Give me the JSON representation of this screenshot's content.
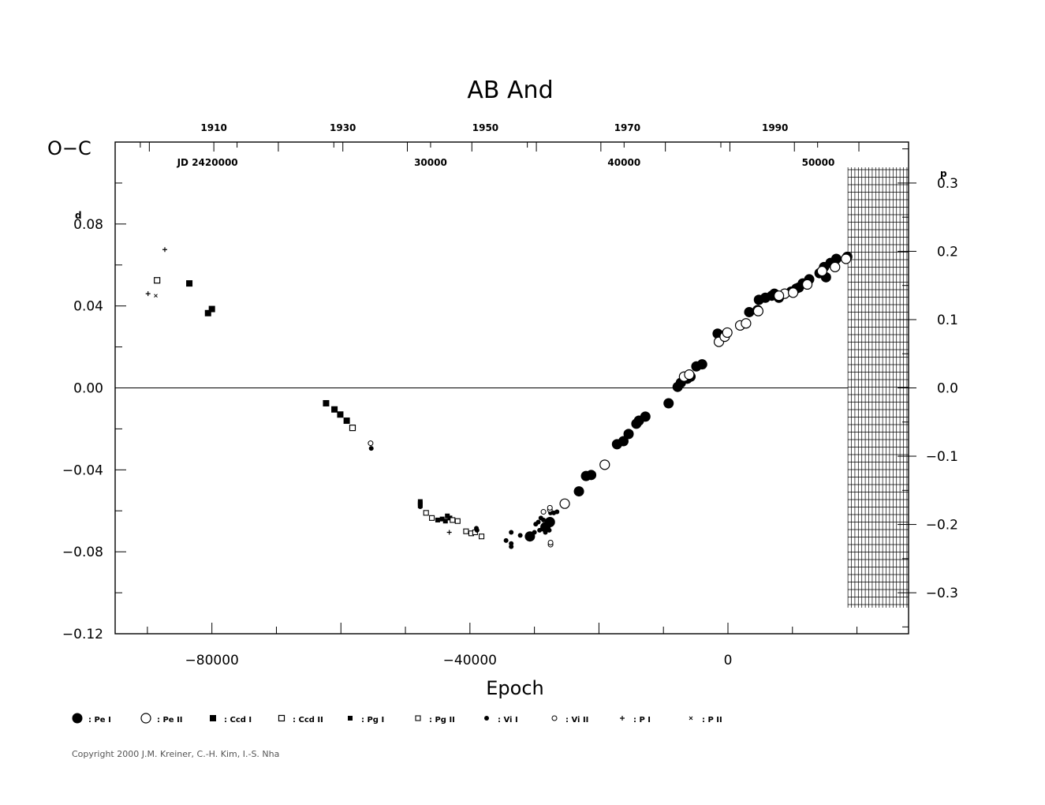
{
  "chart_data": {
    "type": "scatter",
    "title": "AB  And",
    "xlabel": "Epoch",
    "ylabel": "O−C",
    "ylabel_unit": "d",
    "y2_unit": "p",
    "xlim": [
      -95000,
      28000
    ],
    "ylim": [
      -0.12,
      0.12
    ],
    "y2lim": [
      -0.36,
      0.36
    ],
    "x_ticks": [
      -80000,
      -40000,
      0
    ],
    "x_tick_labels": [
      "−80000",
      "−40000",
      "0"
    ],
    "y_ticks": [
      0.08,
      0.04,
      0.0,
      -0.04,
      -0.08,
      -0.12
    ],
    "y_tick_labels": [
      "0.08",
      "0.04",
      "0.00",
      "−0.04",
      "−0.08",
      "−0.12"
    ],
    "y2_ticks": [
      0.3,
      0.2,
      0.1,
      0.0,
      -0.1,
      -0.2,
      -0.3
    ],
    "y2_tick_labels": [
      "0.3",
      "0.2",
      "0.1",
      "0.0",
      "−0.1",
      "−0.2",
      "−0.3"
    ],
    "year_ticks": [
      {
        "label": "1910",
        "x": -79700
      },
      {
        "label": "1930",
        "x": -59700
      },
      {
        "label": "1950",
        "x": -37600
      },
      {
        "label": "1970",
        "x": -15600
      },
      {
        "label": "1990",
        "x": 7300
      }
    ],
    "jd_labels": [
      {
        "label": "JD  2420000",
        "x": -79700
      },
      {
        "label": "30000",
        "x": -46100
      },
      {
        "label": "40000",
        "x": -16100
      },
      {
        "label": "50000",
        "x": 14000
      }
    ],
    "zero_line": true,
    "hatched_region": {
      "x_from": 18600,
      "x_to": 28000
    },
    "series": [
      {
        "name": "Pe I",
        "symbol": "filled-circle-large",
        "points": [
          [
            -30700,
            -0.0725
          ],
          [
            -28300,
            -0.068
          ],
          [
            -27600,
            -0.0655
          ],
          [
            -23100,
            -0.0505
          ],
          [
            -22000,
            -0.043
          ],
          [
            -21200,
            -0.0425
          ],
          [
            -17200,
            -0.0275
          ],
          [
            -16200,
            -0.026
          ],
          [
            -15400,
            -0.0225
          ],
          [
            -14200,
            -0.0175
          ],
          [
            -13800,
            -0.016
          ],
          [
            -12800,
            -0.014
          ],
          [
            -9200,
            -0.0075
          ],
          [
            -7800,
            0.0005
          ],
          [
            -7300,
            0.0025
          ],
          [
            -6300,
            0.0045
          ],
          [
            -5800,
            0.0055
          ],
          [
            -4900,
            0.0105
          ],
          [
            -4000,
            0.0115
          ],
          [
            -1600,
            0.0265
          ],
          [
            -700,
            0.0255
          ],
          [
            -1200,
            0.0245
          ],
          [
            3300,
            0.037
          ],
          [
            4600,
            0.038
          ],
          [
            4800,
            0.043
          ],
          [
            5800,
            0.044
          ],
          [
            6800,
            0.045
          ],
          [
            7200,
            0.046
          ],
          [
            11000,
            0.049
          ],
          [
            11600,
            0.051
          ],
          [
            12600,
            0.053
          ],
          [
            14200,
            0.056
          ],
          [
            14900,
            0.059
          ],
          [
            15900,
            0.061
          ],
          [
            16800,
            0.063
          ],
          [
            18500,
            0.064
          ],
          [
            15200,
            0.054
          ],
          [
            9800,
            0.047
          ],
          [
            10600,
            0.0485
          ],
          [
            7900,
            0.044
          ]
        ]
      },
      {
        "name": "Pe II",
        "symbol": "open-circle-large",
        "points": [
          [
            -25300,
            -0.0565
          ],
          [
            -19100,
            -0.0375
          ],
          [
            -6800,
            0.0055
          ],
          [
            -1400,
            0.0225
          ],
          [
            -500,
            0.025
          ],
          [
            -100,
            0.027
          ],
          [
            1900,
            0.0305
          ],
          [
            2800,
            0.0315
          ],
          [
            4700,
            0.0375
          ],
          [
            8800,
            0.046
          ],
          [
            7900,
            0.045
          ],
          [
            10100,
            0.0465
          ],
          [
            12300,
            0.0505
          ],
          [
            14600,
            0.057
          ],
          [
            16600,
            0.059
          ],
          [
            18300,
            0.063
          ],
          [
            -6000,
            0.0065
          ]
        ]
      },
      {
        "name": "Ccd I",
        "symbol": "filled-square",
        "points": [
          [
            -83500,
            0.051
          ],
          [
            -80600,
            0.0365
          ],
          [
            -80000,
            0.0385
          ],
          [
            -62300,
            -0.0075
          ],
          [
            -61000,
            -0.0105
          ],
          [
            -60100,
            -0.013
          ],
          [
            -59100,
            -0.016
          ]
        ]
      },
      {
        "name": "Ccd II",
        "symbol": "open-square",
        "points": [
          [
            -88500,
            0.0525
          ],
          [
            -58200,
            -0.0195
          ]
        ]
      },
      {
        "name": "Pg I",
        "symbol": "filled-square-small",
        "points": [
          [
            -47700,
            -0.0565
          ],
          [
            -47700,
            -0.0555
          ],
          [
            -47700,
            -0.0575
          ],
          [
            -45000,
            -0.0645
          ],
          [
            -44300,
            -0.064
          ],
          [
            -43800,
            -0.065
          ],
          [
            -43500,
            -0.0625
          ],
          [
            -43100,
            -0.0635
          ]
        ]
      },
      {
        "name": "Pg II",
        "symbol": "open-square-small",
        "points": [
          [
            -46800,
            -0.061
          ],
          [
            -45900,
            -0.0635
          ],
          [
            -42700,
            -0.0645
          ],
          [
            -41900,
            -0.065
          ],
          [
            -40600,
            -0.07
          ],
          [
            -39800,
            -0.071
          ],
          [
            -38200,
            -0.0725
          ],
          [
            -39200,
            -0.0705
          ]
        ]
      },
      {
        "name": "Vi I",
        "symbol": "filled-circle-small",
        "points": [
          [
            -55300,
            -0.0295
          ],
          [
            -47700,
            -0.058
          ],
          [
            -38900,
            -0.0695
          ],
          [
            -34400,
            -0.0745
          ],
          [
            -33600,
            -0.076
          ],
          [
            -33600,
            -0.0775
          ],
          [
            -33600,
            -0.0705
          ],
          [
            -32200,
            -0.072
          ],
          [
            -30800,
            -0.0735
          ],
          [
            -30000,
            -0.0705
          ],
          [
            -29800,
            -0.0665
          ],
          [
            -29400,
            -0.0655
          ],
          [
            -29000,
            -0.0635
          ],
          [
            -28600,
            -0.0645
          ],
          [
            -28200,
            -0.0685
          ],
          [
            -27800,
            -0.0675
          ],
          [
            -27500,
            -0.061
          ],
          [
            -27000,
            -0.061
          ],
          [
            -26500,
            -0.0605
          ],
          [
            -29200,
            -0.0695
          ],
          [
            -28000,
            -0.0655
          ],
          [
            -27700,
            -0.0695
          ],
          [
            -39000,
            -0.0685
          ],
          [
            -28300,
            -0.0705
          ]
        ]
      },
      {
        "name": "Vi II",
        "symbol": "open-circle-small",
        "points": [
          [
            -55400,
            -0.027
          ],
          [
            -28600,
            -0.0605
          ],
          [
            -27600,
            -0.0595
          ],
          [
            -27500,
            -0.0765
          ],
          [
            -27500,
            -0.0755
          ],
          [
            -27600,
            -0.0585
          ]
        ]
      },
      {
        "name": "P I",
        "symbol": "plus",
        "points": [
          [
            -87300,
            0.0675
          ],
          [
            -89900,
            0.046
          ],
          [
            -43200,
            -0.0705
          ]
        ]
      },
      {
        "name": "P II",
        "symbol": "cross",
        "points": [
          [
            -88700,
            0.045
          ]
        ]
      }
    ],
    "legend": {
      "placement": "bottom",
      "entries": [
        {
          "symbol": "filled-circle-large",
          "label": ": Pe  I"
        },
        {
          "symbol": "open-circle-large",
          "label": ": Pe  II"
        },
        {
          "symbol": "filled-square",
          "label": ": Ccd  I"
        },
        {
          "symbol": "open-square",
          "label": ": Ccd  II"
        },
        {
          "symbol": "filled-square-small",
          "label": ": Pg  I"
        },
        {
          "symbol": "open-square-small",
          "label": ": Pg  II"
        },
        {
          "symbol": "filled-circle-small",
          "label": ": Vi  I"
        },
        {
          "symbol": "open-circle-small",
          "label": ": Vi  II"
        },
        {
          "symbol": "plus",
          "label": ": P  I"
        },
        {
          "symbol": "cross",
          "label": ": P  II"
        }
      ]
    },
    "copyright": "Copyright 2000 J.M. Kreiner, C.-H. Kim, I.-S. Nha"
  }
}
